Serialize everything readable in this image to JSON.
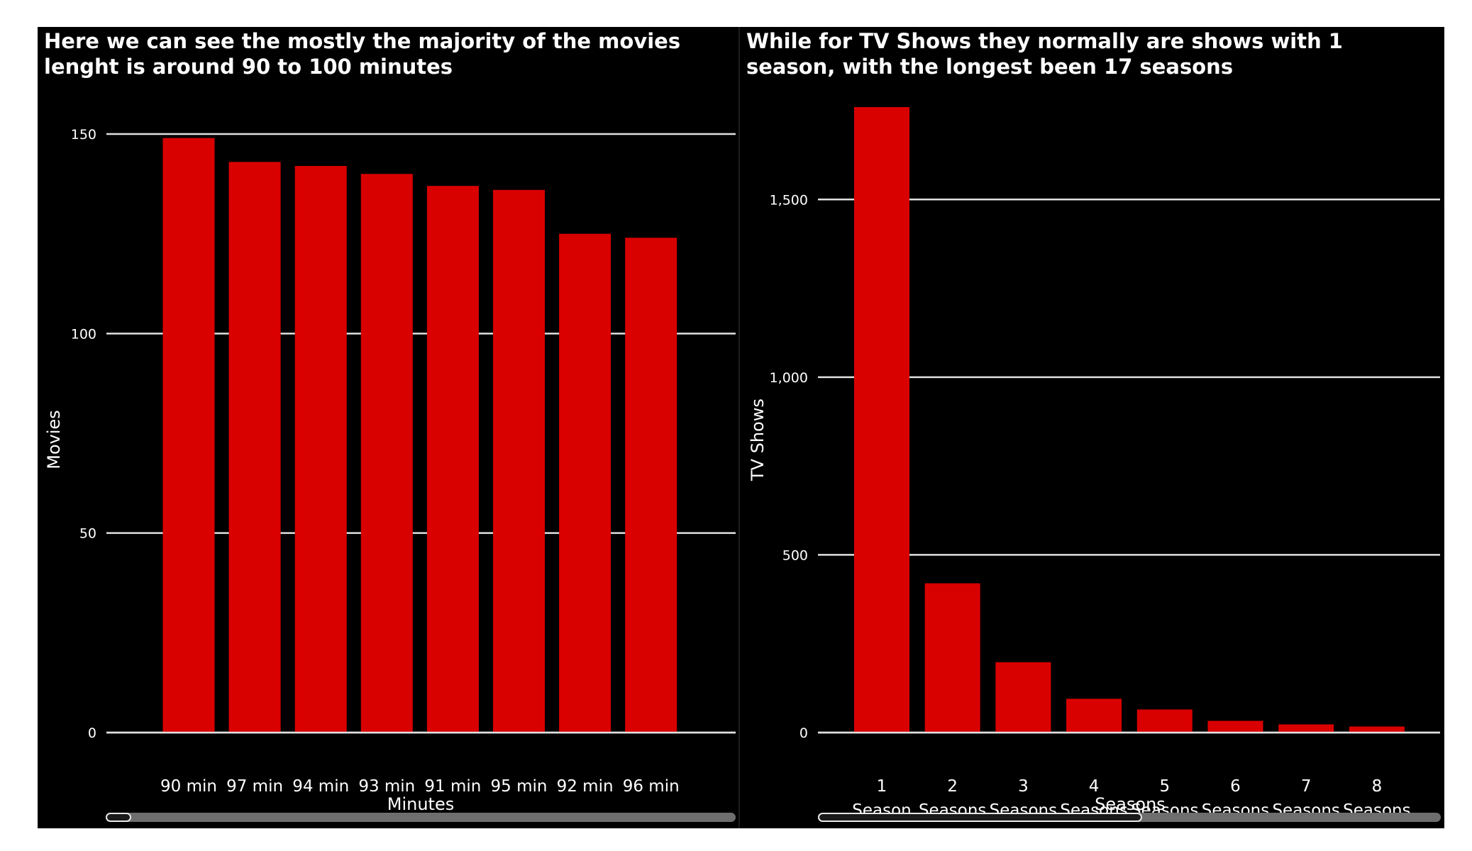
{
  "chart_data": [
    {
      "type": "bar",
      "title": "Here we can see the mostly the majority of the movies lenght is around 90 to 100 minutes",
      "xlabel": "Minutes",
      "ylabel": "Movies",
      "categories": [
        "90 min",
        "97 min",
        "94 min",
        "93 min",
        "91 min",
        "95 min",
        "92 min",
        "96 min"
      ],
      "values": [
        149,
        143,
        142,
        140,
        137,
        136,
        125,
        124
      ],
      "ylim": [
        0,
        150
      ],
      "yticks": [
        0,
        50,
        100,
        150
      ],
      "ytick_labels": [
        "0",
        "50",
        "100",
        "150"
      ],
      "grid": true,
      "bar_color": "#d90000",
      "background": "#000000",
      "scrollbar": {
        "position": 0.0,
        "visible_fraction": 0.04
      }
    },
    {
      "type": "bar",
      "title": "While for TV Shows they normally are shows with 1 season, with the longest been 17 seasons",
      "xlabel": "Seasons",
      "ylabel": "TV Shows",
      "categories": [
        [
          "1",
          "Season"
        ],
        [
          "2",
          "Seasons"
        ],
        [
          "3",
          "Seasons"
        ],
        [
          "4",
          "Seasons"
        ],
        [
          "5",
          "Seasons"
        ],
        [
          "6",
          "Seasons"
        ],
        [
          "7",
          "Seasons"
        ],
        [
          "8",
          "Seasons"
        ]
      ],
      "values": [
        1760,
        420,
        198,
        95,
        65,
        33,
        23,
        17
      ],
      "ylim": [
        0,
        1760
      ],
      "yticks": [
        0,
        500,
        1000,
        1500
      ],
      "ytick_labels": [
        "0",
        "500",
        "1,000",
        "1,500"
      ],
      "grid": true,
      "bar_color": "#d90000",
      "background": "#000000",
      "scrollbar": {
        "position": 0.0,
        "visible_fraction": 0.52
      }
    }
  ]
}
